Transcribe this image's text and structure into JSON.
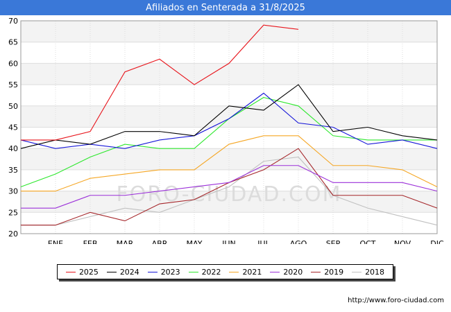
{
  "header": {
    "title": "Afiliados en Senterada a 31/8/2025"
  },
  "footer": {
    "url": "http://www.foro-ciudad.com"
  },
  "watermark": "FORO-CIUDAD.COM",
  "chart_data": {
    "type": "line",
    "title": "Afiliados en Senterada a 31/8/2025",
    "xlabel": "",
    "ylabel": "",
    "categories": [
      "",
      "ENE",
      "FEB",
      "MAR",
      "ABR",
      "MAY",
      "JUN",
      "JUL",
      "AGO",
      "SEP",
      "OCT",
      "NOV",
      "DIC"
    ],
    "ylim": [
      20,
      70
    ],
    "yticks": [
      20,
      25,
      30,
      35,
      40,
      45,
      50,
      55,
      60,
      65,
      70
    ],
    "grid": true,
    "legend_position": "bottom",
    "series": [
      {
        "name": "2025",
        "color": "#e8141b",
        "values": [
          42,
          42,
          44,
          58,
          61,
          55,
          60,
          69,
          68,
          null,
          null,
          null,
          null
        ]
      },
      {
        "name": "2024",
        "color": "#000000",
        "values": [
          40,
          42,
          41,
          44,
          44,
          43,
          50,
          49,
          55,
          44,
          45,
          43,
          42
        ]
      },
      {
        "name": "2023",
        "color": "#1515d8",
        "values": [
          42,
          40,
          41,
          40,
          42,
          43,
          47,
          53,
          46,
          45,
          41,
          42,
          40
        ]
      },
      {
        "name": "2022",
        "color": "#2ee82e",
        "values": [
          31,
          34,
          38,
          41,
          40,
          40,
          47,
          52,
          50,
          43,
          42,
          42,
          42
        ]
      },
      {
        "name": "2021",
        "color": "#f5a623",
        "values": [
          30,
          30,
          33,
          34,
          35,
          35,
          41,
          43,
          43,
          36,
          36,
          35,
          31
        ]
      },
      {
        "name": "2020",
        "color": "#9b30d9",
        "values": [
          26,
          26,
          29,
          29,
          30,
          31,
          32,
          36,
          36,
          32,
          32,
          32,
          30
        ]
      },
      {
        "name": "2019",
        "color": "#a5262a",
        "values": [
          22,
          22,
          25,
          23,
          27,
          28,
          32,
          35,
          40,
          29,
          29,
          29,
          26
        ]
      },
      {
        "name": "2018",
        "color": "#c0c0c0",
        "values": [
          22,
          22,
          24,
          26,
          25,
          28,
          31,
          37,
          38,
          29,
          26,
          24,
          22
        ]
      }
    ]
  }
}
